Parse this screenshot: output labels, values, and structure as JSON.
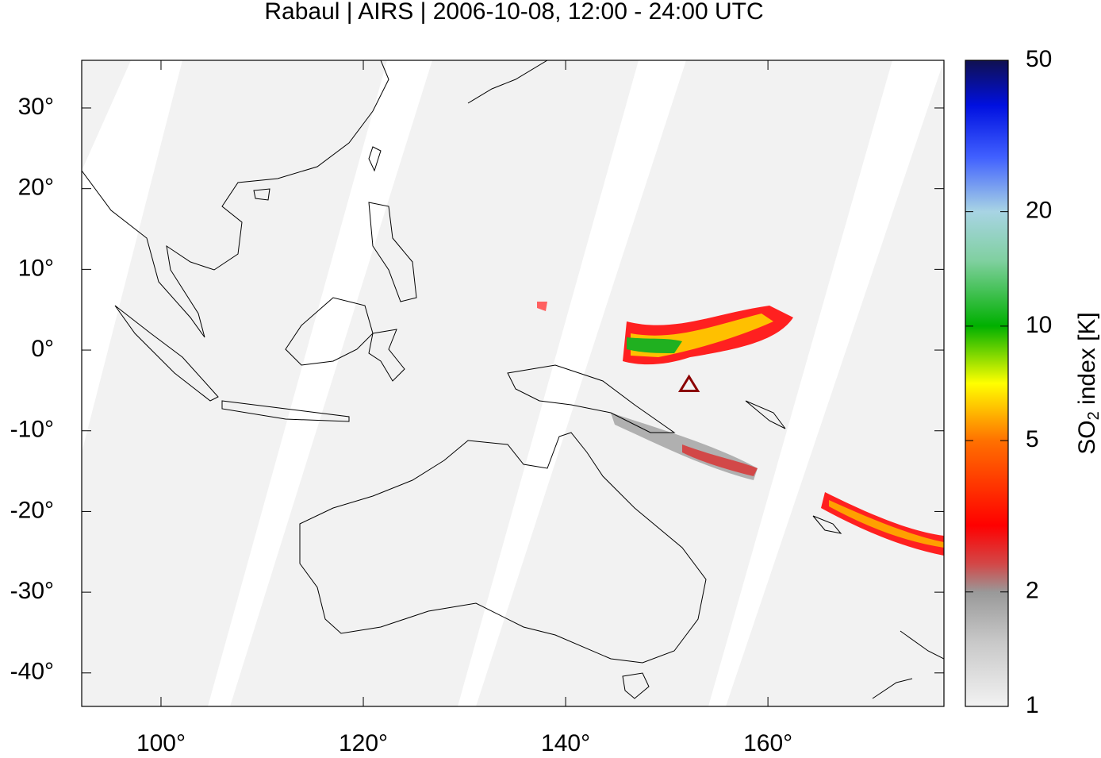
{
  "chart_data": {
    "type": "map",
    "title": "Rabaul | AIRS | 2006-10-08, 12:00 - 24:00 UTC",
    "xlim": [
      92.16,
      177.4
    ],
    "ylim": [
      -44.15,
      35.9
    ],
    "xticks": [
      {
        "value": 100,
        "label": "100°"
      },
      {
        "value": 120,
        "label": "120°"
      },
      {
        "value": 140,
        "label": "140°"
      },
      {
        "value": 160,
        "label": "160°"
      }
    ],
    "yticks": [
      {
        "value": 30,
        "label": "30°"
      },
      {
        "value": 20,
        "label": "20°"
      },
      {
        "value": 10,
        "label": "10°"
      },
      {
        "value": 0,
        "label": "0°"
      },
      {
        "value": -10,
        "label": "-10°"
      },
      {
        "value": -20,
        "label": "-20°"
      },
      {
        "value": -30,
        "label": "-30°"
      },
      {
        "value": -40,
        "label": "-40°"
      }
    ],
    "volcano": {
      "lon": 152.2,
      "lat": -4.27,
      "color": "#8b0000"
    },
    "colorbar": {
      "log": true,
      "zlim": [
        1,
        50
      ],
      "zticks": [
        1,
        2,
        5,
        10,
        20,
        50
      ],
      "label": {
        "main": "SO",
        "sub": "2",
        "rest": " index [K]"
      }
    }
  }
}
